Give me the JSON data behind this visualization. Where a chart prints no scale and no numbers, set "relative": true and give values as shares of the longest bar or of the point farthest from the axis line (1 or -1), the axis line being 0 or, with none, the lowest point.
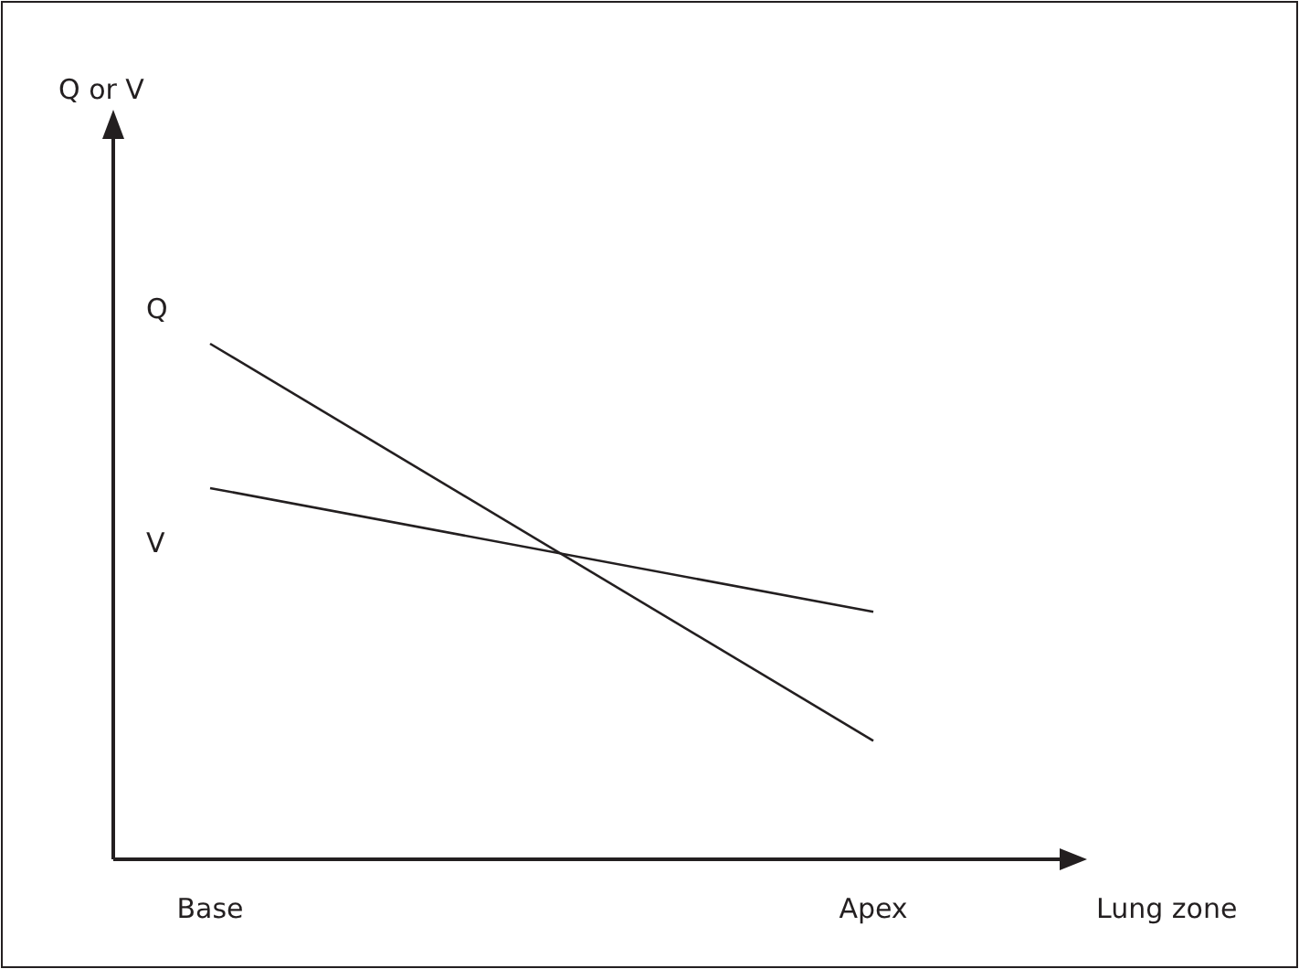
{
  "chart_data": {
    "type": "line",
    "relative": true,
    "xlabel": "Lung zone",
    "annotations": [
      "Q or V"
    ],
    "categories": [
      "Base",
      "Apex"
    ],
    "legend": false,
    "series": [
      {
        "name": "Q",
        "color": "#231f20",
        "values": [
          1,
          0.23
        ]
      },
      {
        "name": "V",
        "color": "#231f20",
        "values": [
          0.72,
          0.48
        ]
      }
    ]
  }
}
